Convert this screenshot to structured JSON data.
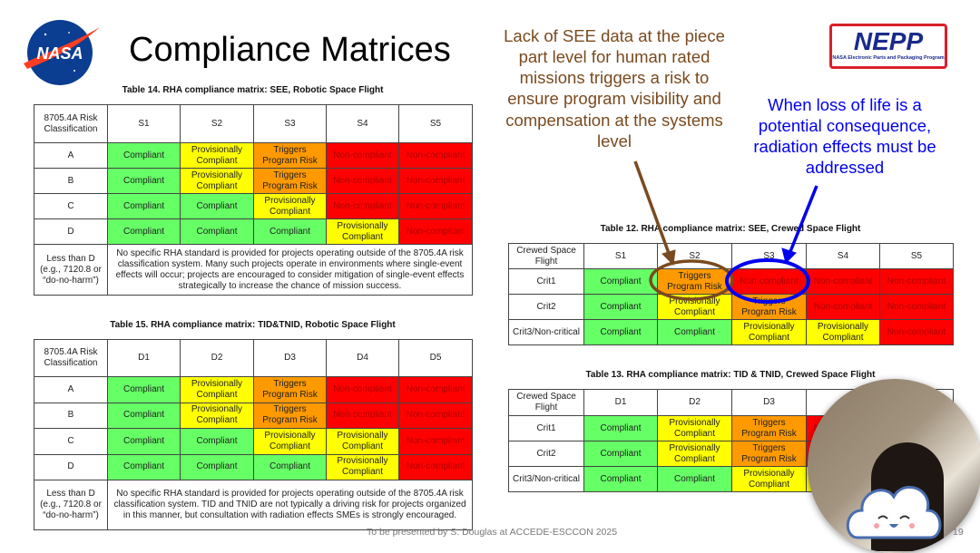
{
  "slide": {
    "title": "Compliance Matrices",
    "footer": "To be presented by S. Douglas at ACCEDE-ESCCON 2025",
    "page_number": "19",
    "logos": {
      "nasa": "NASA",
      "nepp": "NEPP",
      "nepp_subtitle": "NASA Electronic Parts and Packaging Program"
    }
  },
  "annotations": {
    "brown_note": "Lack of SEE data at the piece part level for human rated missions triggers a risk to ensure program visibility and compensation at the systems level",
    "blue_note": "When loss of life is a potential consequence, radiation effects must be addressed",
    "brown_color": "#7a4a1f",
    "blue_color": "#0000ee"
  },
  "legend_colors": {
    "Compliant": "#66ff66",
    "Provisionally Compliant": "#ffff00",
    "Triggers Program Risk": "#ff9900",
    "Non-compliant": "#ff0000"
  },
  "tables": [
    {
      "id": "t14",
      "caption": "Table 14. RHA compliance matrix: SEE, Robotic Space Flight",
      "header": [
        "8705.4A Risk Classification",
        "S1",
        "S2",
        "S3",
        "S4",
        "S5"
      ],
      "rows": [
        {
          "label": "A",
          "cells": [
            "Compliant",
            "Provisionally Compliant",
            "Triggers Program Risk",
            "Non-compliant",
            "Non-compliant"
          ]
        },
        {
          "label": "B",
          "cells": [
            "Compliant",
            "Provisionally Compliant",
            "Triggers Program Risk",
            "Non-compliant",
            "Non-compliant"
          ]
        },
        {
          "label": "C",
          "cells": [
            "Compliant",
            "Compliant",
            "Provisionally Compliant",
            "Non-compliant",
            "Non-compliant"
          ]
        },
        {
          "label": "D",
          "cells": [
            "Compliant",
            "Compliant",
            "Compliant",
            "Provisionally Compliant",
            "Non-compliant"
          ]
        }
      ],
      "note_label": "Less than D (e.g., 7120.8 or “do-no-harm”)",
      "note": "No specific RHA standard is provided for projects operating outside of the 8705.4A risk classification system. Many such projects operate in environments where single-event effects will occur; projects are encouraged to consider mitigation of single-event effects strategically to increase the chance of mission success."
    },
    {
      "id": "t15",
      "caption": "Table 15. RHA compliance matrix: TID&TNID, Robotic Space Flight",
      "header": [
        "8705.4A Risk Classification",
        "D1",
        "D2",
        "D3",
        "D4",
        "D5"
      ],
      "rows": [
        {
          "label": "A",
          "cells": [
            "Compliant",
            "Provisionally Compliant",
            "Triggers Program Risk",
            "Non-compliant",
            "Non-compliant"
          ]
        },
        {
          "label": "B",
          "cells": [
            "Compliant",
            "Provisionally Compliant",
            "Triggers Program Risk",
            "Non-compliant",
            "Non-compliant"
          ]
        },
        {
          "label": "C",
          "cells": [
            "Compliant",
            "Compliant",
            "Provisionally Compliant",
            "Provisionally Compliant",
            "Non-compliant"
          ]
        },
        {
          "label": "D",
          "cells": [
            "Compliant",
            "Compliant",
            "Compliant",
            "Provisionally Compliant",
            "Non-compliant"
          ]
        }
      ],
      "note_label": "Less than D (e.g., 7120.8 or “do-no-harm”)",
      "note": "No specific RHA standard is provided for projects operating outside of the 8705.4A risk classification system. TID and TNID are not typically a driving risk for projects organized in this manner, but consultation with radiation effects SMEs is strongly encouraged."
    },
    {
      "id": "t12",
      "caption": "Table 12. RHA compliance matrix: SEE, Crewed Space Flight",
      "header": [
        "Crewed Space Flight",
        "S1",
        "S2",
        "S3",
        "S4",
        "S5"
      ],
      "rows": [
        {
          "label": "Crit1",
          "cells": [
            "Compliant",
            "Triggers Program Risk",
            "Non-compliant",
            "Non-compliant",
            "Non-compliant"
          ]
        },
        {
          "label": "Crit2",
          "cells": [
            "Compliant",
            "Provisionally Compliant",
            "Triggers Program Risk",
            "Non-compliant",
            "Non-compliant"
          ]
        },
        {
          "label": "Crit3/Non-critical",
          "cells": [
            "Compliant",
            "Compliant",
            "Provisionally Compliant",
            "Provisionally Compliant",
            "Non-compliant"
          ]
        }
      ]
    },
    {
      "id": "t13",
      "caption": "Table 13. RHA compliance matrix: TID & TNID, Crewed Space Flight",
      "header": [
        "Crewed Space Flight",
        "D1",
        "D2",
        "D3",
        "",
        ""
      ],
      "rows": [
        {
          "label": "Crit1",
          "cells": [
            "Compliant",
            "Provisionally Compliant",
            "Triggers Program Risk",
            "Non-compliant",
            ""
          ]
        },
        {
          "label": "Crit2",
          "cells": [
            "Compliant",
            "Provisionally Compliant",
            "Triggers Program Risk",
            "Non-compliant",
            ""
          ]
        },
        {
          "label": "Crit3/Non-critical",
          "cells": [
            "Compliant",
            "Compliant",
            "Provisionally Compliant",
            "Provisionally Compliant",
            ""
          ]
        }
      ]
    }
  ]
}
